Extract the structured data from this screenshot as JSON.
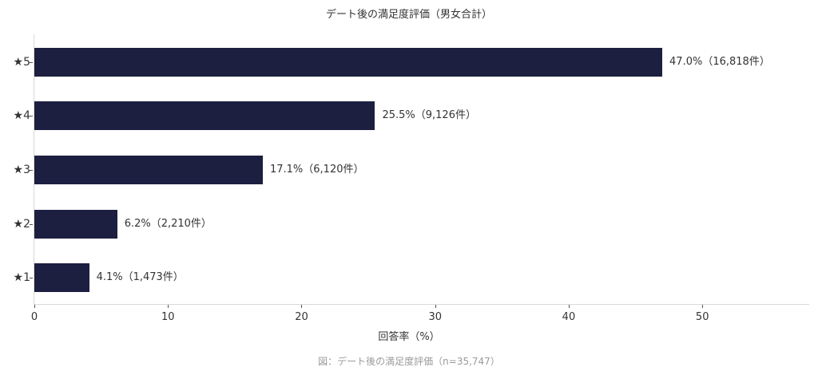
{
  "chart_data": {
    "type": "bar",
    "orientation": "horizontal",
    "title": "デート後の満足度評価（男女合計）",
    "xlabel": "回答率（%）",
    "ylabel": "",
    "categories": [
      "★5",
      "★4",
      "★3",
      "★2",
      "★1"
    ],
    "values": [
      47.0,
      25.5,
      17.1,
      6.2,
      4.1
    ],
    "counts": [
      16818,
      9126,
      6120,
      2210,
      1473
    ],
    "data_labels": [
      "47.0%（16,818件）",
      "25.5%（9,126件）",
      "17.1%（6,120件）",
      "6.2%（2,210件）",
      "4.1%（1,473件）"
    ],
    "xlim": [
      0,
      58
    ],
    "xticks": [
      "0",
      "10",
      "20",
      "30",
      "40",
      "50"
    ],
    "grid": false,
    "legend": null,
    "bar_color": "#1c1f3f",
    "caption": "図：デート後の満足度評価（n=35,747）"
  }
}
